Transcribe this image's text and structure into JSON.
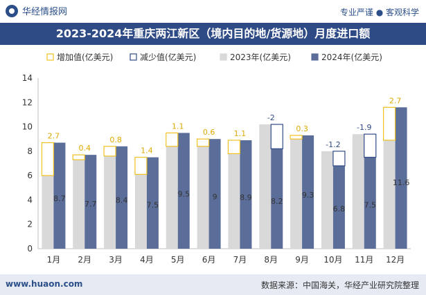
{
  "header": {
    "brand": "华经情报网",
    "tagline": "专业严谨 ● 客观科学",
    "title": "2023-2024年重庆两江新区（境内目的地/货源地）月度进口额"
  },
  "footer": {
    "site": "www.huaon.com",
    "source": "数据来源：中国海关，华经产业研究院整理"
  },
  "colors": {
    "title_bg": "#2f4b86",
    "bar_2023": "#d9d9d9",
    "bar_2024": "#5b6d99",
    "increase": "#f0c020",
    "decrease": "#2f4b86"
  },
  "chart_data": {
    "type": "bar",
    "categories": [
      "1月",
      "2月",
      "3月",
      "4月",
      "5月",
      "6月",
      "7月",
      "8月",
      "9月",
      "10月",
      "11月",
      "12月"
    ],
    "series": [
      {
        "name": "2023年(亿美元)",
        "values": [
          6.0,
          7.3,
          7.6,
          6.1,
          8.4,
          8.4,
          7.8,
          10.2,
          9.0,
          8.0,
          9.4,
          8.9
        ]
      },
      {
        "name": "2024年(亿美元)",
        "values": [
          8.7,
          7.7,
          8.4,
          7.5,
          9.5,
          9.0,
          8.9,
          8.2,
          9.3,
          6.8,
          7.5,
          11.6
        ]
      }
    ],
    "changes": [
      2.7,
      0.4,
      0.8,
      1.4,
      1.1,
      0.6,
      1.1,
      -2,
      0.3,
      -1.2,
      -1.9,
      2.7
    ],
    "change_labels": [
      "2.7",
      "0.4",
      "0.8",
      "1.4",
      "1.1",
      "0.6",
      "1.1",
      "-2",
      "0.3",
      "-1.2",
      "-1.9",
      "2.7"
    ],
    "value_labels": [
      "8.7",
      "7.7",
      "8.4",
      "7.5",
      "9.5",
      "9",
      "8.9",
      "8.2",
      "9.3",
      "6.8",
      "7.5",
      "11.6"
    ],
    "legend": [
      "增加值(亿美元)",
      "减少值(亿美元)",
      "2023年(亿美元)",
      "2024年(亿美元)"
    ],
    "yticks": [
      "0",
      "2",
      "4",
      "6",
      "8",
      "10",
      "12",
      "14"
    ],
    "ylim": [
      0,
      14
    ],
    "legend_position": "top-left"
  }
}
